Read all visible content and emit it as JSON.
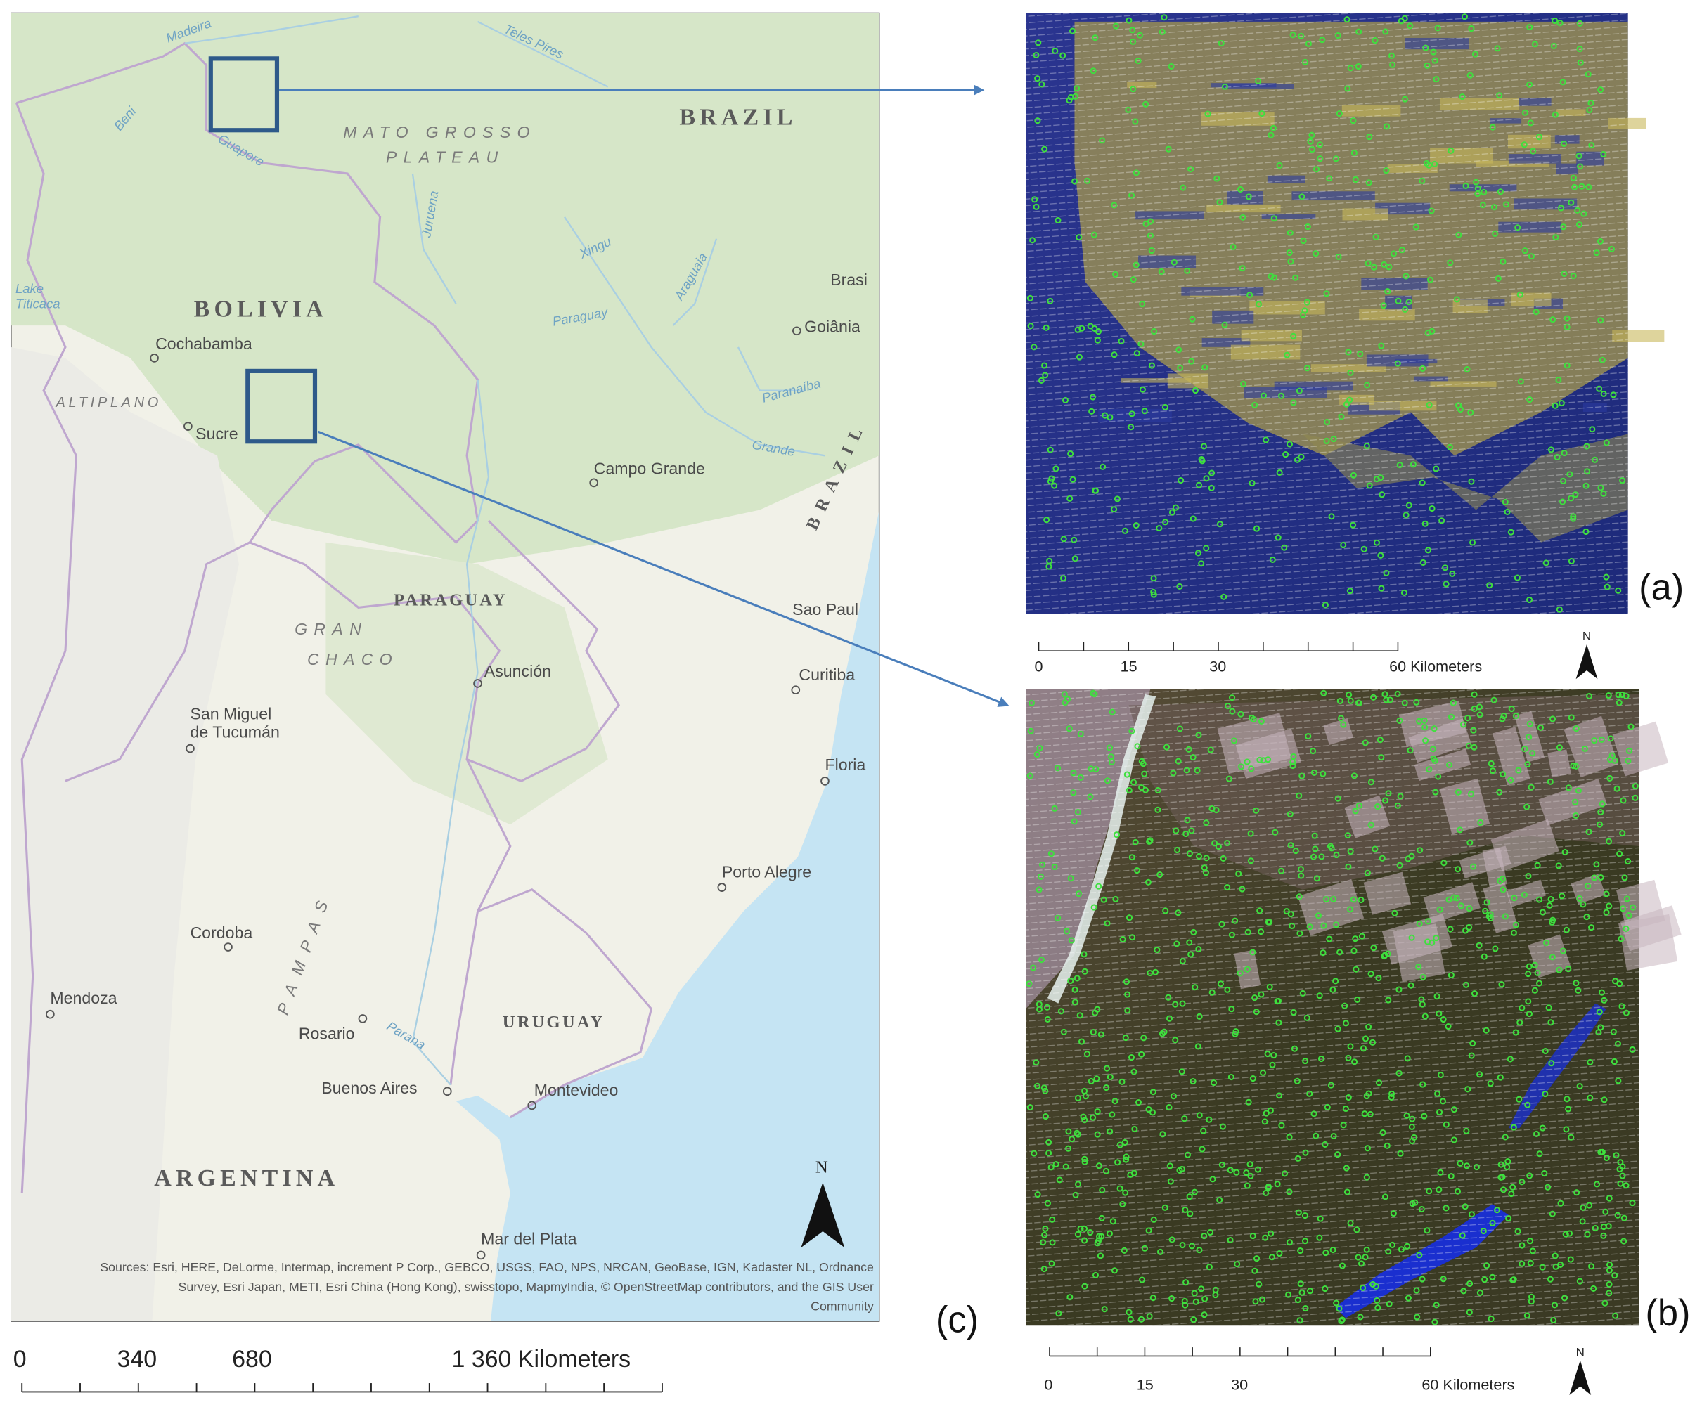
{
  "map": {
    "labels": [
      "Madeira",
      "Teles Pires",
      "BRAZIL",
      "MATO GROSSO",
      "PLATEAU",
      "Beni",
      "Guapore",
      "Juruena",
      "Xingu",
      "Araguaia",
      "Brasi",
      "Goiânia",
      "Lake",
      "Titicaca",
      "BOLIVIA",
      "Paraguay",
      "Cochabamba",
      "ALTIPLANO",
      "Sucre",
      "Paranaíba",
      "Grande",
      "BRAZIL",
      "Campo Grande",
      "PARAGUAY",
      "Sao Paul",
      "GRAN",
      "CHACO",
      "Asunción",
      "Curitiba",
      "San Miguel",
      "de Tucumán",
      "Floria",
      "Porto Alegre",
      "PAMPAS",
      "Cordoba",
      "Mendoza",
      "Rosario",
      "Parana",
      "URUGUAY",
      "Buenos Aires",
      "Montevideo",
      "ARGENTINA",
      "Mar del Plata"
    ],
    "north": "N",
    "sources": [
      "Sources: Esri, HERE, DeLorme, Intermap, increment P Corp., GEBCO, USGS, FAO, NPS, NRCAN, GeoBase, IGN, Kadaster NL, Ordnance",
      "Survey, Esri Japan, METI, Esri China (Hong Kong), swisstopo, MapmyIndia, © OpenStreetMap contributors, and the GIS User",
      "Community"
    ],
    "scale_labels": [
      "0",
      "340",
      "680",
      "1 360 Kilometers"
    ],
    "label": "(c)"
  },
  "panels": [
    {
      "label": "(a)",
      "scale_labels": [
        "0",
        "15",
        "30",
        "60 Kilometers"
      ],
      "north": "N"
    },
    {
      "label": "(b)",
      "scale_labels": [
        "0",
        "15",
        "30",
        "60 Kilometers"
      ],
      "north": "N"
    }
  ]
}
